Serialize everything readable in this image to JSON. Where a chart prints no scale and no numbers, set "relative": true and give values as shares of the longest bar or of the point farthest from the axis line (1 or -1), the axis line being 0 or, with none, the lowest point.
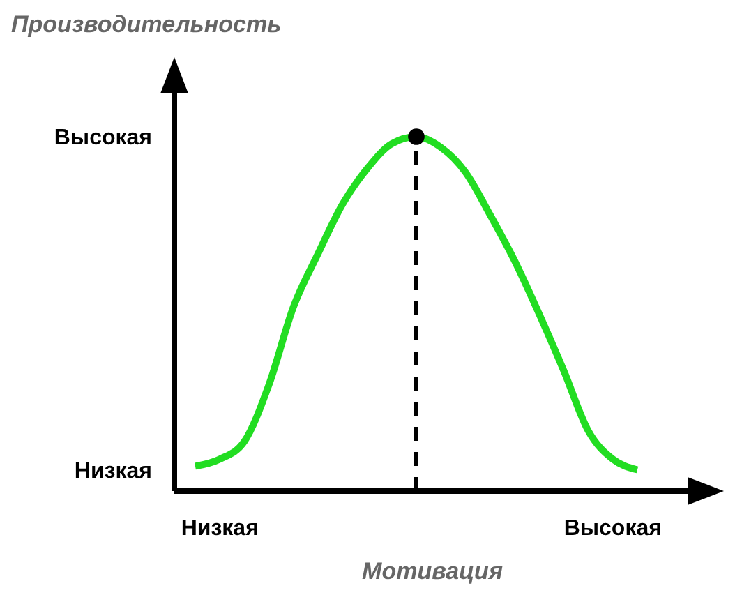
{
  "chart_data": {
    "type": "line",
    "xlabel": "Мотивация",
    "ylabel": "Производительность",
    "relative": true,
    "categories": [
      null,
      "Низкая",
      null,
      null,
      null,
      null,
      null,
      null,
      null,
      null,
      null,
      null,
      null,
      null,
      null,
      null,
      null,
      "Высокая",
      null
    ],
    "annotations": [
      "Низкая",
      "Высокая"
    ],
    "marker": "none",
    "line_style": "solid",
    "series": [
      {
        "color": "#22dd22",
        "values": [
          0.07,
          0.09,
          0.14,
          0.3,
          0.52,
          0.67,
          0.81,
          0.91,
          0.98,
          1,
          0.97,
          0.9,
          0.78,
          0.65,
          0.5,
          0.34,
          0.17,
          0.09,
          0.06
        ]
      },
      {
        "type": "scatter",
        "color": "#000000",
        "marker": "circle",
        "values": [
          null,
          null,
          null,
          null,
          null,
          null,
          null,
          null,
          null,
          1,
          null,
          null,
          null,
          null,
          null,
          null,
          null,
          null,
          null
        ]
      }
    ]
  }
}
